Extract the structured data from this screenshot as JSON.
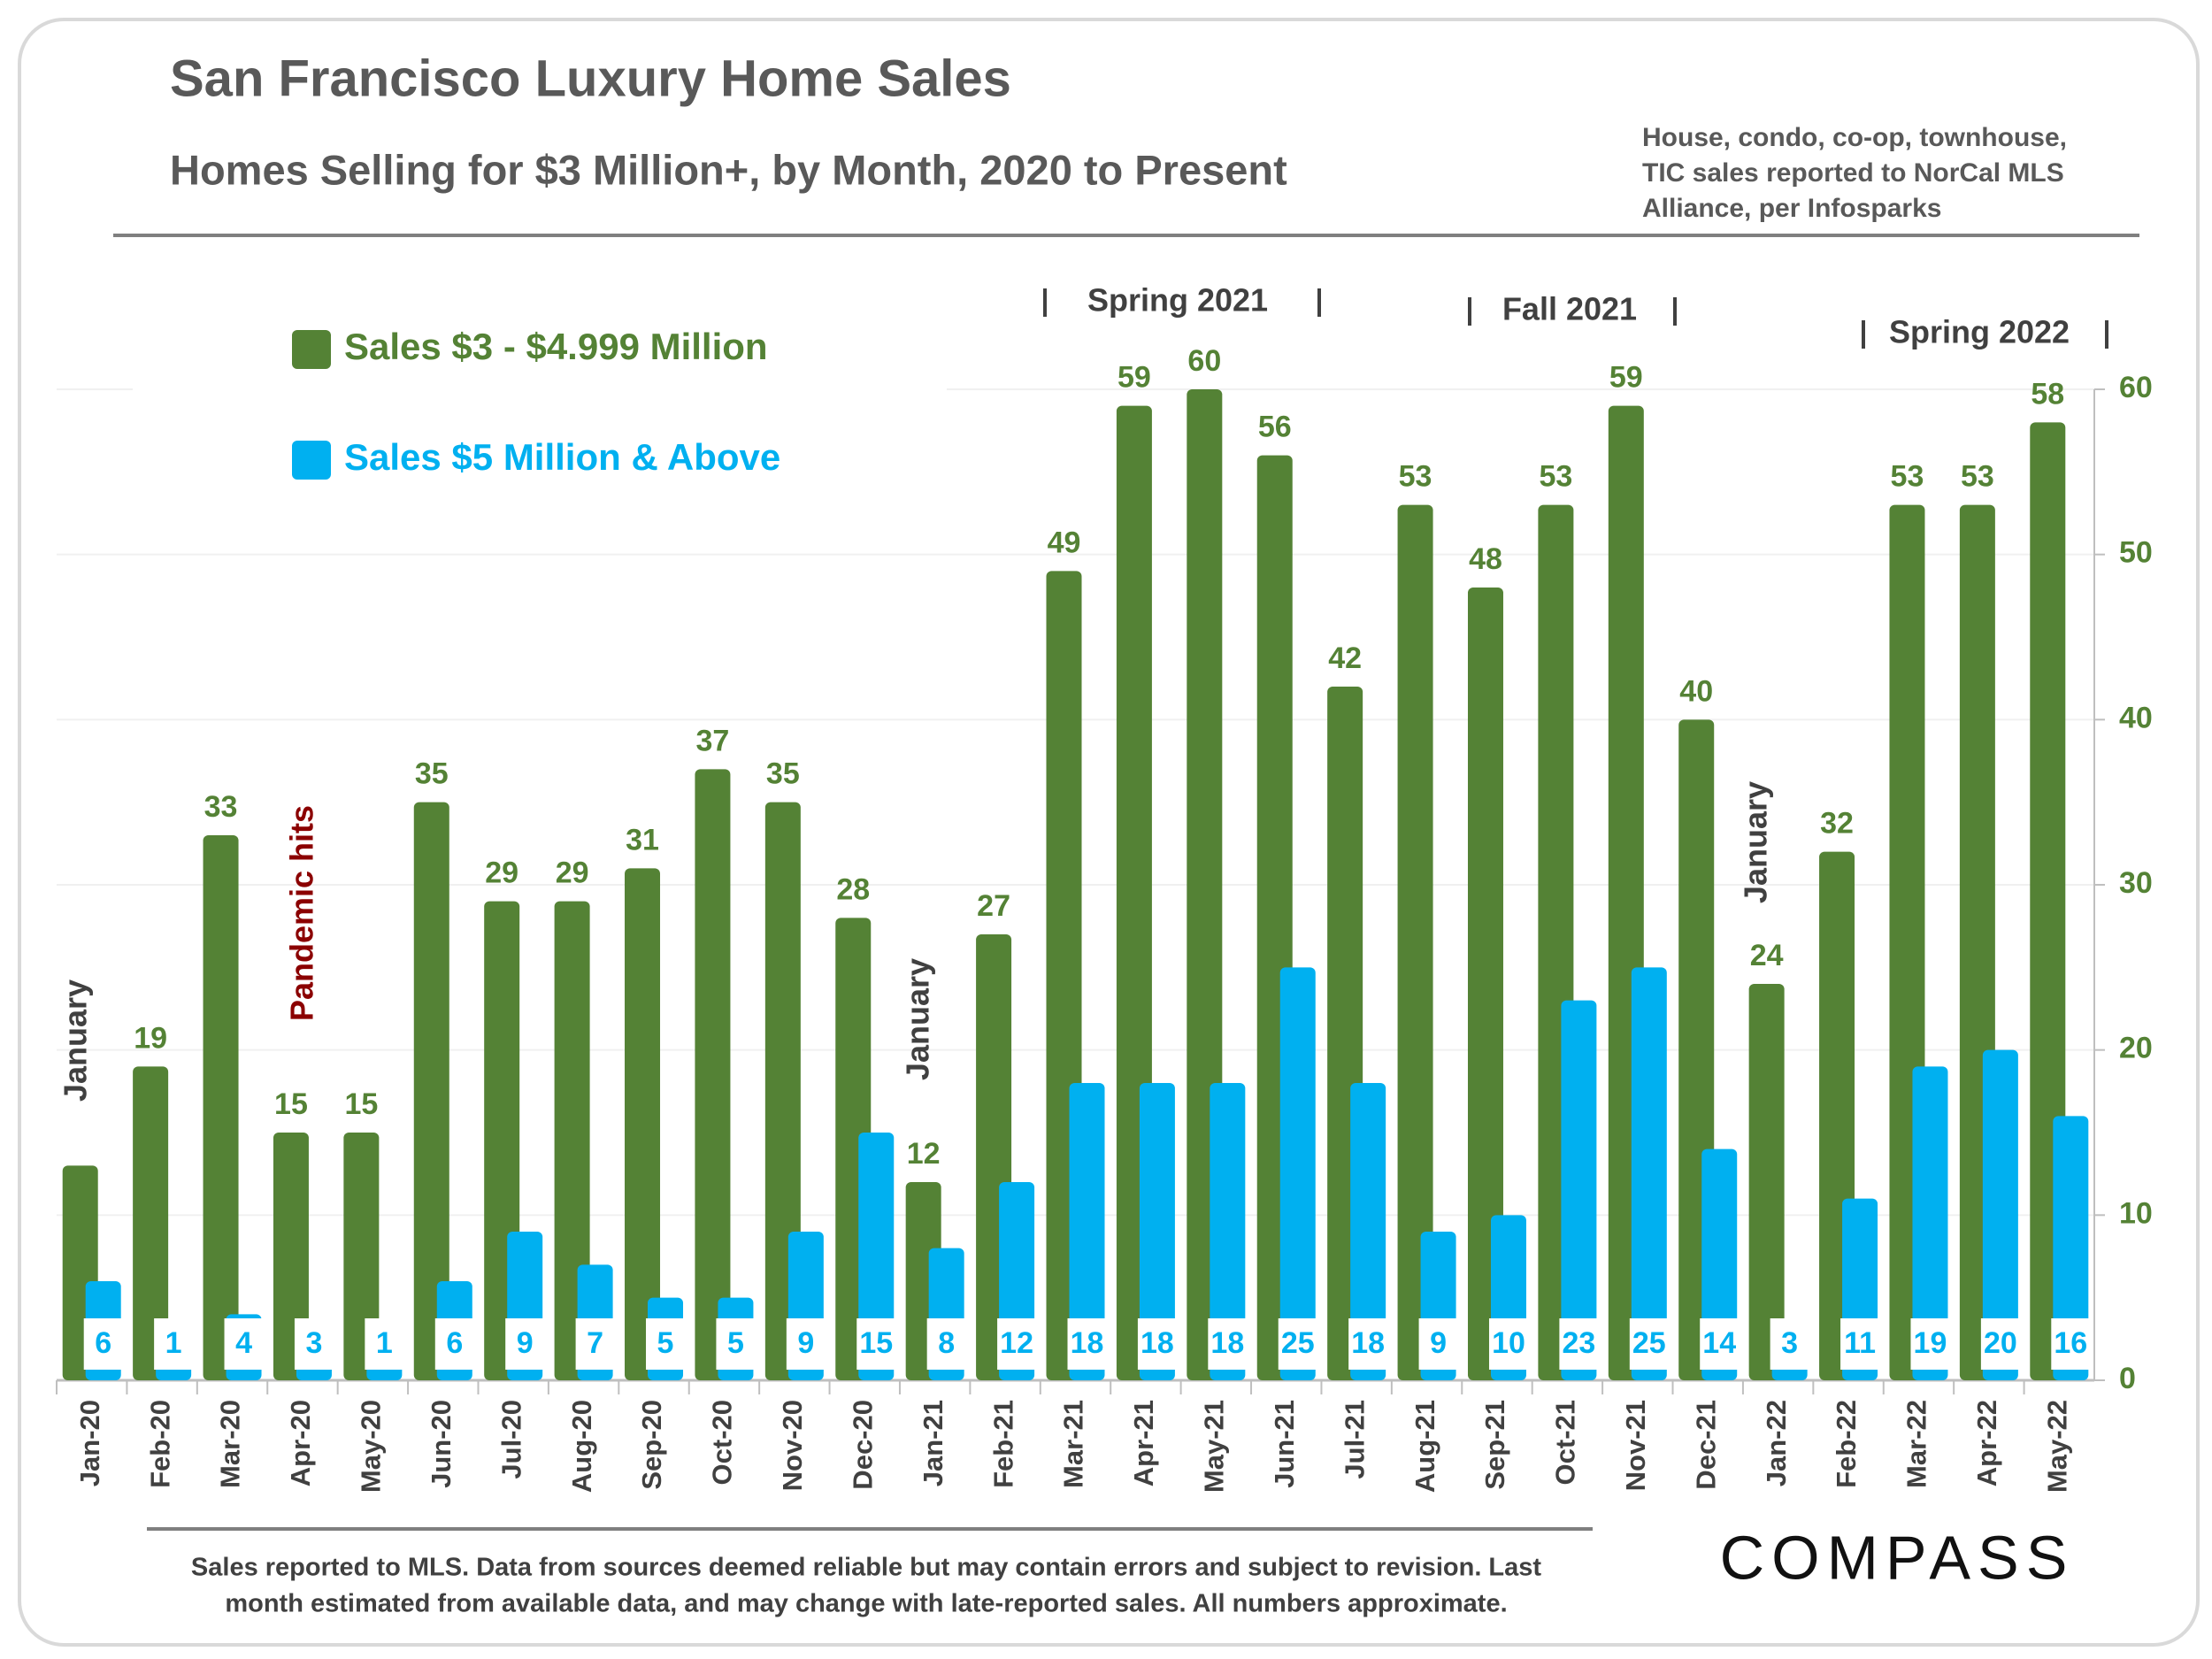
{
  "chart_data": {
    "type": "bar",
    "title": "San Francisco Luxury Home Sales",
    "subtitle": "Homes Selling for $3 Million+, by Month, 2020 to Present",
    "note": [
      "House, condo, co-op, townhouse,",
      "TIC sales reported to NorCal MLS",
      "Alliance, per Infosparks"
    ],
    "categories": [
      "Jan-20",
      "Feb-20",
      "Mar-20",
      "Apr-20",
      "May-20",
      "Jun-20",
      "Jul-20",
      "Aug-20",
      "Sep-20",
      "Oct-20",
      "Nov-20",
      "Dec-20",
      "Jan-21",
      "Feb-21",
      "Mar-21",
      "Apr-21",
      "May-21",
      "Jun-21",
      "Jul-21",
      "Aug-21",
      "Sep-21",
      "Oct-21",
      "Nov-21",
      "Dec-21",
      "Jan-22",
      "Feb-22",
      "Mar-22",
      "Apr-22",
      "May-22"
    ],
    "series": [
      {
        "name": "Sales $3 - $4.999 Million",
        "color": "#548235",
        "values": [
          13,
          19,
          33,
          15,
          15,
          35,
          29,
          29,
          31,
          37,
          35,
          28,
          12,
          27,
          49,
          59,
          60,
          56,
          42,
          53,
          48,
          53,
          59,
          40,
          24,
          32,
          53,
          53,
          58
        ],
        "value_labels": [
          null,
          "19",
          "33",
          "15",
          "15",
          "35",
          "29",
          "29",
          "31",
          "37",
          "35",
          "28",
          "12",
          "27",
          "49",
          "59",
          "60",
          "56",
          "42",
          "53",
          "48",
          "53",
          "59",
          "40",
          "24",
          "32",
          "53",
          "53",
          "58"
        ]
      },
      {
        "name": "Sales $5 Million & Above",
        "color": "#00b0f0",
        "values": [
          6,
          1,
          4,
          3,
          1,
          6,
          9,
          7,
          5,
          5,
          9,
          15,
          8,
          12,
          18,
          18,
          18,
          25,
          18,
          9,
          10,
          23,
          25,
          14,
          3,
          11,
          19,
          20,
          16
        ]
      }
    ],
    "ylim": [
      0,
      60
    ],
    "yticks": [
      0,
      10,
      20,
      30,
      40,
      50,
      60
    ],
    "y_axis_side": "right",
    "grid": true,
    "legend": "upper left",
    "annotations": {
      "periods": [
        "Spring 2021",
        "Fall 2021",
        "Spring 2022"
      ],
      "january": [
        "January",
        "January",
        "January"
      ],
      "event": "Pandemic hits"
    },
    "footer": [
      "Sales reported to MLS. Data from sources deemed reliable but may contain errors and subject to revision.  Last",
      "month estimated from available data, and may change with late-reported sales. All numbers approximate."
    ],
    "logo": "COMPASS"
  }
}
